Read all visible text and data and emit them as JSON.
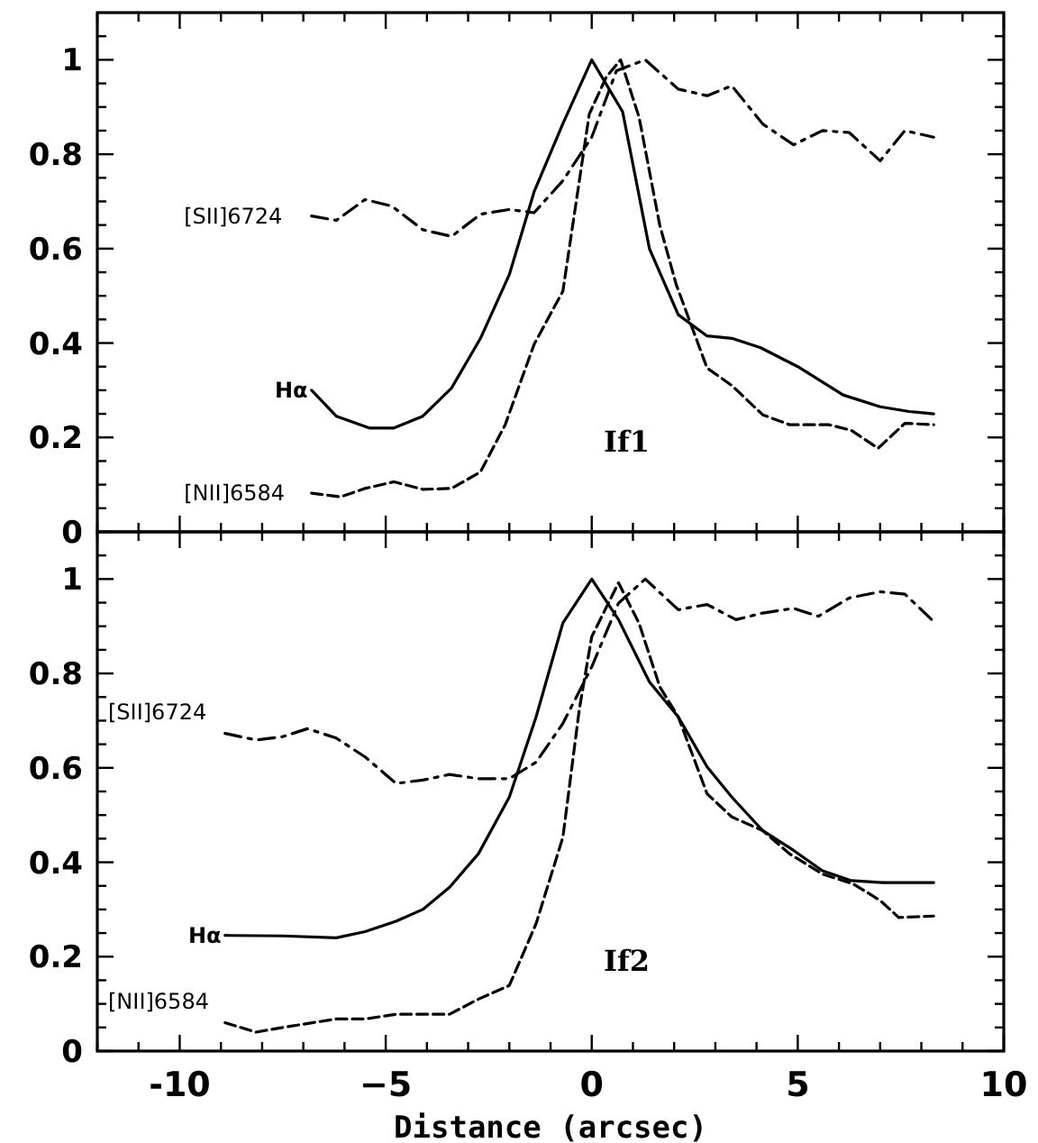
{
  "chart_data": [
    {
      "type": "line",
      "annotations": [
        "If1"
      ],
      "xlim": [
        -12,
        10
      ],
      "ylim": [
        0,
        1.1
      ],
      "tick_labels": "y",
      "xticks": [
        {
          "value": -12,
          "label": null
        },
        {
          "value": -11,
          "label": null
        },
        {
          "value": -10,
          "label": null
        },
        {
          "value": -9,
          "label": null
        },
        {
          "value": -8,
          "label": null
        },
        {
          "value": -7,
          "label": null
        },
        {
          "value": -6,
          "label": null
        },
        {
          "value": -5,
          "label": null
        },
        {
          "value": -4,
          "label": null
        },
        {
          "value": -3,
          "label": null
        },
        {
          "value": -2,
          "label": null
        },
        {
          "value": -1,
          "label": null
        },
        {
          "value": 0,
          "label": null
        },
        {
          "value": 1,
          "label": null
        },
        {
          "value": 2,
          "label": null
        },
        {
          "value": 3,
          "label": null
        },
        {
          "value": 4,
          "label": null
        },
        {
          "value": 5,
          "label": null
        },
        {
          "value": 6,
          "label": null
        },
        {
          "value": 7,
          "label": null
        },
        {
          "value": 8,
          "label": null
        },
        {
          "value": 9,
          "label": null
        },
        {
          "value": 10,
          "label": null
        }
      ],
      "yticks": [
        0,
        {
          "value": 0.05,
          "label": null
        },
        {
          "value": 0.1,
          "label": null
        },
        {
          "value": 0.15,
          "label": null
        },
        0.2,
        {
          "value": 0.25,
          "label": null
        },
        {
          "value": 0.3,
          "label": null
        },
        {
          "value": 0.35,
          "label": null
        },
        0.4,
        {
          "value": 0.45,
          "label": null
        },
        {
          "value": 0.5,
          "label": null
        },
        {
          "value": 0.55,
          "label": null
        },
        0.6,
        {
          "value": 0.65,
          "label": null
        },
        {
          "value": 0.7,
          "label": null
        },
        {
          "value": 0.75,
          "label": null
        },
        0.8,
        {
          "value": 0.85,
          "label": null
        },
        {
          "value": 0.9,
          "label": null
        },
        {
          "value": 0.95,
          "label": null
        },
        1,
        {
          "value": 1.05,
          "label": null
        }
      ],
      "series": [
        {
          "name": "[SII]6724",
          "color": "#000000",
          "line_style": "dashdot",
          "x": [
            -6.8,
            -6.2,
            -5.5,
            -4.85,
            -4.1,
            -3.4,
            -2.7,
            -2.0,
            -1.4,
            -0.7,
            0,
            0.6,
            1.3,
            2.1,
            2.8,
            3.4,
            4.15,
            4.9,
            5.6,
            6.25,
            7.0,
            7.6,
            8.3
          ],
          "values": [
            0.669,
            0.66,
            0.704,
            0.69,
            0.64,
            0.626,
            0.673,
            0.683,
            0.676,
            0.744,
            0.836,
            0.977,
            1.0,
            0.938,
            0.924,
            0.945,
            0.864,
            0.82,
            0.85,
            0.846,
            0.786,
            0.85,
            0.836
          ]
        },
        {
          "name": "Hα",
          "color": "#000000",
          "line_style": "solid",
          "x": [
            -6.8,
            -6.2,
            -5.4,
            -4.8,
            -4.1,
            -3.4,
            -2.7,
            -2.0,
            -1.4,
            -0.7,
            0,
            0.75,
            1.4,
            2.1,
            2.8,
            3.4,
            4.1,
            5.0,
            6.1,
            7.0,
            7.7,
            8.3
          ],
          "values": [
            0.3,
            0.245,
            0.22,
            0.22,
            0.245,
            0.305,
            0.41,
            0.545,
            0.72,
            0.865,
            1.0,
            0.89,
            0.6,
            0.46,
            0.415,
            0.41,
            0.39,
            0.35,
            0.29,
            0.265,
            0.255,
            0.25
          ]
        },
        {
          "name": "[NII]6584",
          "color": "#000000",
          "line_style": "dashed",
          "x": [
            -6.8,
            -6.1,
            -5.5,
            -4.8,
            -4.1,
            -3.4,
            -2.7,
            -2.1,
            -1.4,
            -0.7,
            -0.06,
            0.35,
            0.7,
            1.15,
            1.65,
            2.05,
            2.8,
            3.4,
            4.15,
            4.8,
            5.75,
            6.3,
            6.95,
            7.6,
            8.3
          ],
          "values": [
            0.082,
            0.074,
            0.092,
            0.106,
            0.09,
            0.092,
            0.127,
            0.227,
            0.397,
            0.51,
            0.885,
            0.963,
            1.0,
            0.878,
            0.65,
            0.524,
            0.347,
            0.31,
            0.248,
            0.227,
            0.227,
            0.215,
            0.177,
            0.23,
            0.227
          ]
        }
      ]
    },
    {
      "type": "line",
      "annotations": [
        "If2"
      ],
      "xlabel": "Distance (arcsec)",
      "xlim": [
        -12,
        10
      ],
      "ylim": [
        0,
        1.1
      ],
      "xticks": [
        {
          "value": -12,
          "label": null
        },
        {
          "value": -11,
          "label": null
        },
        -10,
        {
          "value": -9,
          "label": null
        },
        {
          "value": -8,
          "label": null
        },
        {
          "value": -7,
          "label": null
        },
        {
          "value": -6,
          "label": null
        },
        {
          "value": -5,
          "label": "−5"
        },
        {
          "value": -4,
          "label": null
        },
        {
          "value": -3,
          "label": null
        },
        {
          "value": -2,
          "label": null
        },
        {
          "value": -1,
          "label": null
        },
        0,
        {
          "value": 1,
          "label": null
        },
        {
          "value": 2,
          "label": null
        },
        {
          "value": 3,
          "label": null
        },
        {
          "value": 4,
          "label": null
        },
        5,
        {
          "value": 6,
          "label": null
        },
        {
          "value": 7,
          "label": null
        },
        {
          "value": 8,
          "label": null
        },
        {
          "value": 9,
          "label": null
        },
        10
      ],
      "yticks": [
        0,
        {
          "value": 0.05,
          "label": null
        },
        {
          "value": 0.1,
          "label": null
        },
        {
          "value": 0.15,
          "label": null
        },
        0.2,
        {
          "value": 0.25,
          "label": null
        },
        {
          "value": 0.3,
          "label": null
        },
        {
          "value": 0.35,
          "label": null
        },
        0.4,
        {
          "value": 0.45,
          "label": null
        },
        {
          "value": 0.5,
          "label": null
        },
        {
          "value": 0.55,
          "label": null
        },
        0.6,
        {
          "value": 0.65,
          "label": null
        },
        {
          "value": 0.7,
          "label": null
        },
        {
          "value": 0.75,
          "label": null
        },
        0.8,
        {
          "value": 0.85,
          "label": null
        },
        {
          "value": 0.9,
          "label": null
        },
        {
          "value": 0.95,
          "label": null
        },
        1,
        {
          "value": 1.05,
          "label": null
        }
      ],
      "series": [
        {
          "name": "[SII]6724",
          "color": "#000000",
          "line_style": "dashdot",
          "x": [
            -8.9,
            -8.15,
            -7.5,
            -6.9,
            -6.2,
            -5.5,
            -4.75,
            -4.1,
            -3.45,
            -2.75,
            -2.0,
            -1.35,
            -0.7,
            0,
            0.65,
            1.3,
            2.1,
            2.8,
            3.5,
            4.15,
            4.9,
            5.5,
            6.25,
            7.0,
            7.6,
            8.3
          ],
          "values": [
            0.673,
            0.659,
            0.666,
            0.683,
            0.663,
            0.623,
            0.567,
            0.574,
            0.586,
            0.577,
            0.577,
            0.612,
            0.694,
            0.814,
            0.949,
            1.0,
            0.935,
            0.946,
            0.914,
            0.928,
            0.938,
            0.921,
            0.96,
            0.973,
            0.968,
            0.91
          ]
        },
        {
          "name": "Hα",
          "color": "#000000",
          "line_style": "solid",
          "x": [
            -8.9,
            -7.5,
            -6.2,
            -5.5,
            -4.75,
            -4.1,
            -3.45,
            -2.75,
            -2.0,
            -1.35,
            -0.7,
            0,
            0.65,
            1.4,
            2.1,
            2.8,
            3.4,
            4.15,
            4.9,
            5.6,
            6.3,
            7.05,
            8.3
          ],
          "values": [
            0.245,
            0.244,
            0.24,
            0.253,
            0.275,
            0.3,
            0.347,
            0.418,
            0.538,
            0.708,
            0.907,
            1.0,
            0.914,
            0.782,
            0.708,
            0.602,
            0.538,
            0.467,
            0.425,
            0.382,
            0.361,
            0.357,
            0.357
          ]
        },
        {
          "name": "[NII]6584",
          "color": "#000000",
          "line_style": "dashed",
          "x": [
            -8.9,
            -8.15,
            -7.5,
            -6.2,
            -5.5,
            -4.75,
            -3.45,
            -2.75,
            -2.0,
            -1.35,
            -0.7,
            -0.3,
            0,
            0.65,
            1.15,
            1.65,
            2.1,
            2.8,
            3.4,
            4.15,
            4.8,
            5.6,
            6.35,
            7.0,
            7.45,
            8.3
          ],
          "values": [
            0.06,
            0.04,
            0.05,
            0.068,
            0.068,
            0.078,
            0.078,
            0.11,
            0.139,
            0.27,
            0.453,
            0.725,
            0.878,
            0.992,
            0.906,
            0.772,
            0.708,
            0.545,
            0.496,
            0.467,
            0.418,
            0.375,
            0.354,
            0.319,
            0.283,
            0.286
          ]
        }
      ]
    }
  ]
}
